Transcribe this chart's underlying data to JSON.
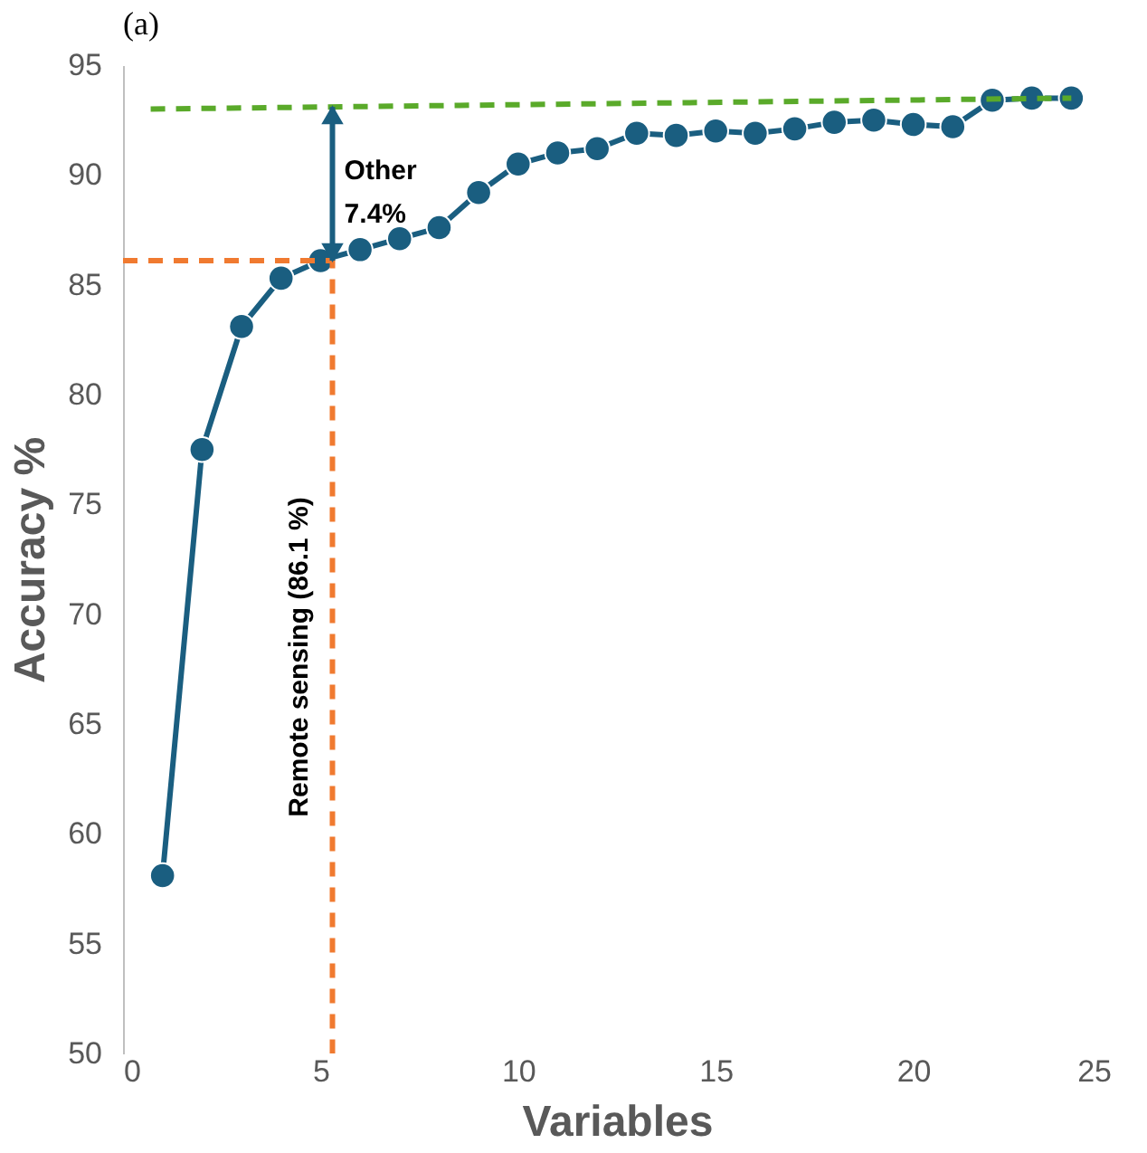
{
  "chart_data": {
    "type": "line",
    "title": "(a)",
    "xlabel": "Variables",
    "ylabel": "Accuracy %",
    "x": [
      1,
      2,
      3,
      4,
      5,
      6,
      7,
      8,
      9,
      10,
      11,
      12,
      13,
      14,
      15,
      16,
      17,
      18,
      19,
      20,
      21,
      22,
      23,
      24
    ],
    "series": [
      {
        "color": "#1a5e80",
        "marker": "circle",
        "line_style": "solid",
        "values": [
          58.1,
          77.5,
          83.1,
          85.3,
          86.1,
          86.6,
          87.1,
          87.6,
          89.2,
          90.5,
          91.0,
          91.2,
          91.9,
          91.8,
          92.0,
          91.9,
          92.1,
          92.4,
          92.5,
          92.3,
          92.2,
          93.4,
          93.5,
          93.5
        ]
      },
      {
        "type": "line",
        "color": "#f07a30",
        "marker": "none",
        "line_style": "dashed",
        "x": [
          0,
          5.3,
          5.3
        ],
        "values": [
          86.1,
          86.1,
          50
        ]
      },
      {
        "type": "line",
        "color": "#5aaa2a",
        "marker": "none",
        "line_style": "dashed",
        "x": [
          0.7,
          24
        ],
        "values": [
          93.0,
          93.5
        ]
      }
    ],
    "annotations": [
      "Other\n7.4%",
      "Remote sensing (86.1 %)"
    ],
    "xlim": [
      0,
      25
    ],
    "xticks": [
      0,
      5,
      10,
      15,
      20,
      25
    ],
    "ylim": [
      50,
      95
    ],
    "yticks": [
      50,
      55,
      60,
      65,
      70,
      75,
      80,
      85,
      90,
      95
    ],
    "grid": false
  }
}
